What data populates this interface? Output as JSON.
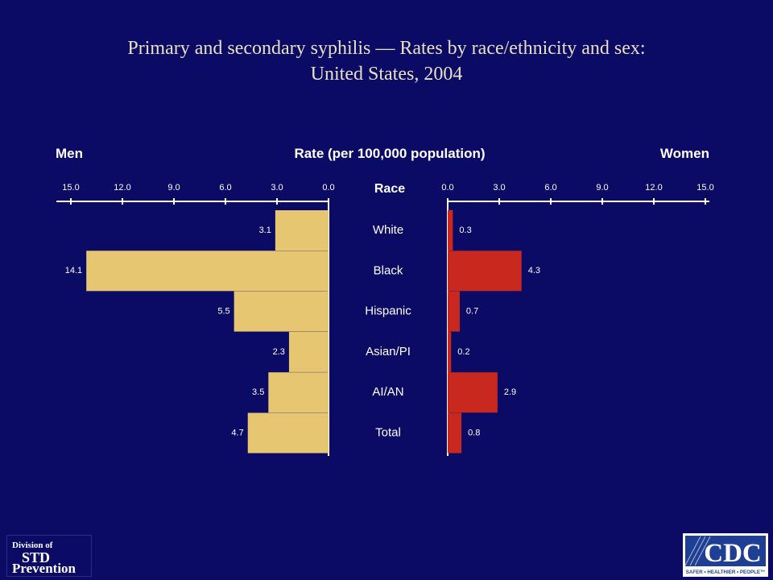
{
  "title_line1": "Primary and secondary syphilis — Rates by race/ethnicity and sex:",
  "title_line2": "United States, 2004",
  "chart_data": {
    "type": "bar",
    "orientation": "horizontal-butterfly",
    "header_left": "Men",
    "header_center": "Rate (per 100,000 population)",
    "header_right": "Women",
    "category_axis_label": "Race",
    "categories": [
      "White",
      "Black",
      "Hispanic",
      "Asian/PI",
      "AI/AN",
      "Total"
    ],
    "ticks": [
      "0.0",
      "3.0",
      "6.0",
      "9.0",
      "12.0",
      "15.0"
    ],
    "xlim": [
      0,
      15
    ],
    "series": [
      {
        "name": "Men",
        "values": [
          3.1,
          14.1,
          5.5,
          2.3,
          3.5,
          4.7
        ],
        "labels": [
          "3.1",
          "14.1",
          "5.5",
          "2.3",
          "3.5",
          "4.7"
        ],
        "color": "#e6c670"
      },
      {
        "name": "Women",
        "values": [
          0.3,
          4.3,
          0.7,
          0.2,
          2.9,
          0.8
        ],
        "labels": [
          "0.3",
          "4.3",
          "0.7",
          "0.2",
          "2.9",
          "0.8"
        ],
        "color": "#c8281e"
      }
    ]
  },
  "footer": {
    "std_logo": [
      "Division of",
      "STD",
      "Prevention"
    ],
    "cdc_logo": "CDC",
    "cdc_tagline": "SAFER • HEALTHIER • PEOPLE™"
  }
}
